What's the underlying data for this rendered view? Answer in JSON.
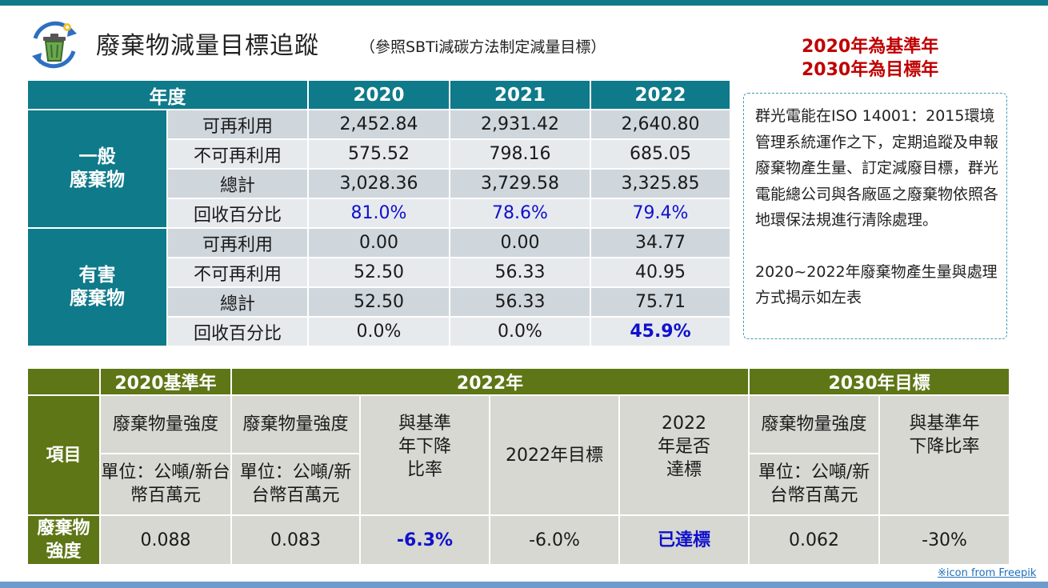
{
  "header": {
    "title": "廢棄物減量目標追蹤",
    "subtitle": "（參照SBTi減碳方法制定減量目標）",
    "base_year_note": "2020年為基準年",
    "target_year_note": "2030年為目標年"
  },
  "waste_table": {
    "year_header": "年度",
    "years": [
      "2020",
      "2021",
      "2022"
    ],
    "groups": [
      {
        "name": "一般\n廢棄物",
        "rows": [
          {
            "label": "可再利用",
            "values": [
              "2,452.84",
              "2,931.42",
              "2,640.80"
            ]
          },
          {
            "label": "不可再利用",
            "values": [
              "575.52",
              "798.16",
              "685.05"
            ]
          },
          {
            "label": "總計",
            "values": [
              "3,028.36",
              "3,729.58",
              "3,325.85"
            ]
          },
          {
            "label": "回收百分比",
            "values": [
              "81.0%",
              "78.6%",
              "79.4%"
            ]
          }
        ]
      },
      {
        "name": "有害\n廢棄物",
        "rows": [
          {
            "label": "可再利用",
            "values": [
              "0.00",
              "0.00",
              "34.77"
            ]
          },
          {
            "label": "不可再利用",
            "values": [
              "52.50",
              "56.33",
              "40.95"
            ]
          },
          {
            "label": "總計",
            "values": [
              "52.50",
              "56.33",
              "75.71"
            ]
          },
          {
            "label": "回收百分比",
            "values": [
              "0.0%",
              "0.0%",
              "45.9%"
            ]
          }
        ]
      }
    ]
  },
  "note": {
    "paragraph1": "群光電能在ISO 14001：2015環境管理系統運作之下，定期追蹤及申報廢棄物產生量、訂定減廢目標，群光電能總公司與各廠區之廢棄物依照各地環保法規進行清除處理。",
    "paragraph2": "2020~2022年廢棄物產生量與處理方式揭示如左表"
  },
  "target_table": {
    "headers": {
      "base": "2020基準年",
      "current": "2022年",
      "target": "2030年目標"
    },
    "item_label": "項目",
    "intensity_label": "廢棄物量強度",
    "unit_label": "單位：公噸/新台幣百萬元",
    "reduction_label": "與基準年下降比率",
    "goal_label": "2022年目標",
    "achieved_label": "2022年是否達標",
    "row": {
      "label": "廢棄物強度",
      "base_value": "0.088",
      "current_value": "0.083",
      "reduction": "-6.3%",
      "goal": "-6.0%",
      "achieved": "已達標",
      "target_value": "0.062",
      "target_reduction": "-30%"
    }
  },
  "credit": "※icon from Freepik",
  "colors": {
    "teal": "#0f7a8a",
    "olive": "#5e7615",
    "highlight_blue": "#1010cc",
    "accent_red": "#c00000"
  },
  "icons": [
    "recycle-bin-icon"
  ]
}
